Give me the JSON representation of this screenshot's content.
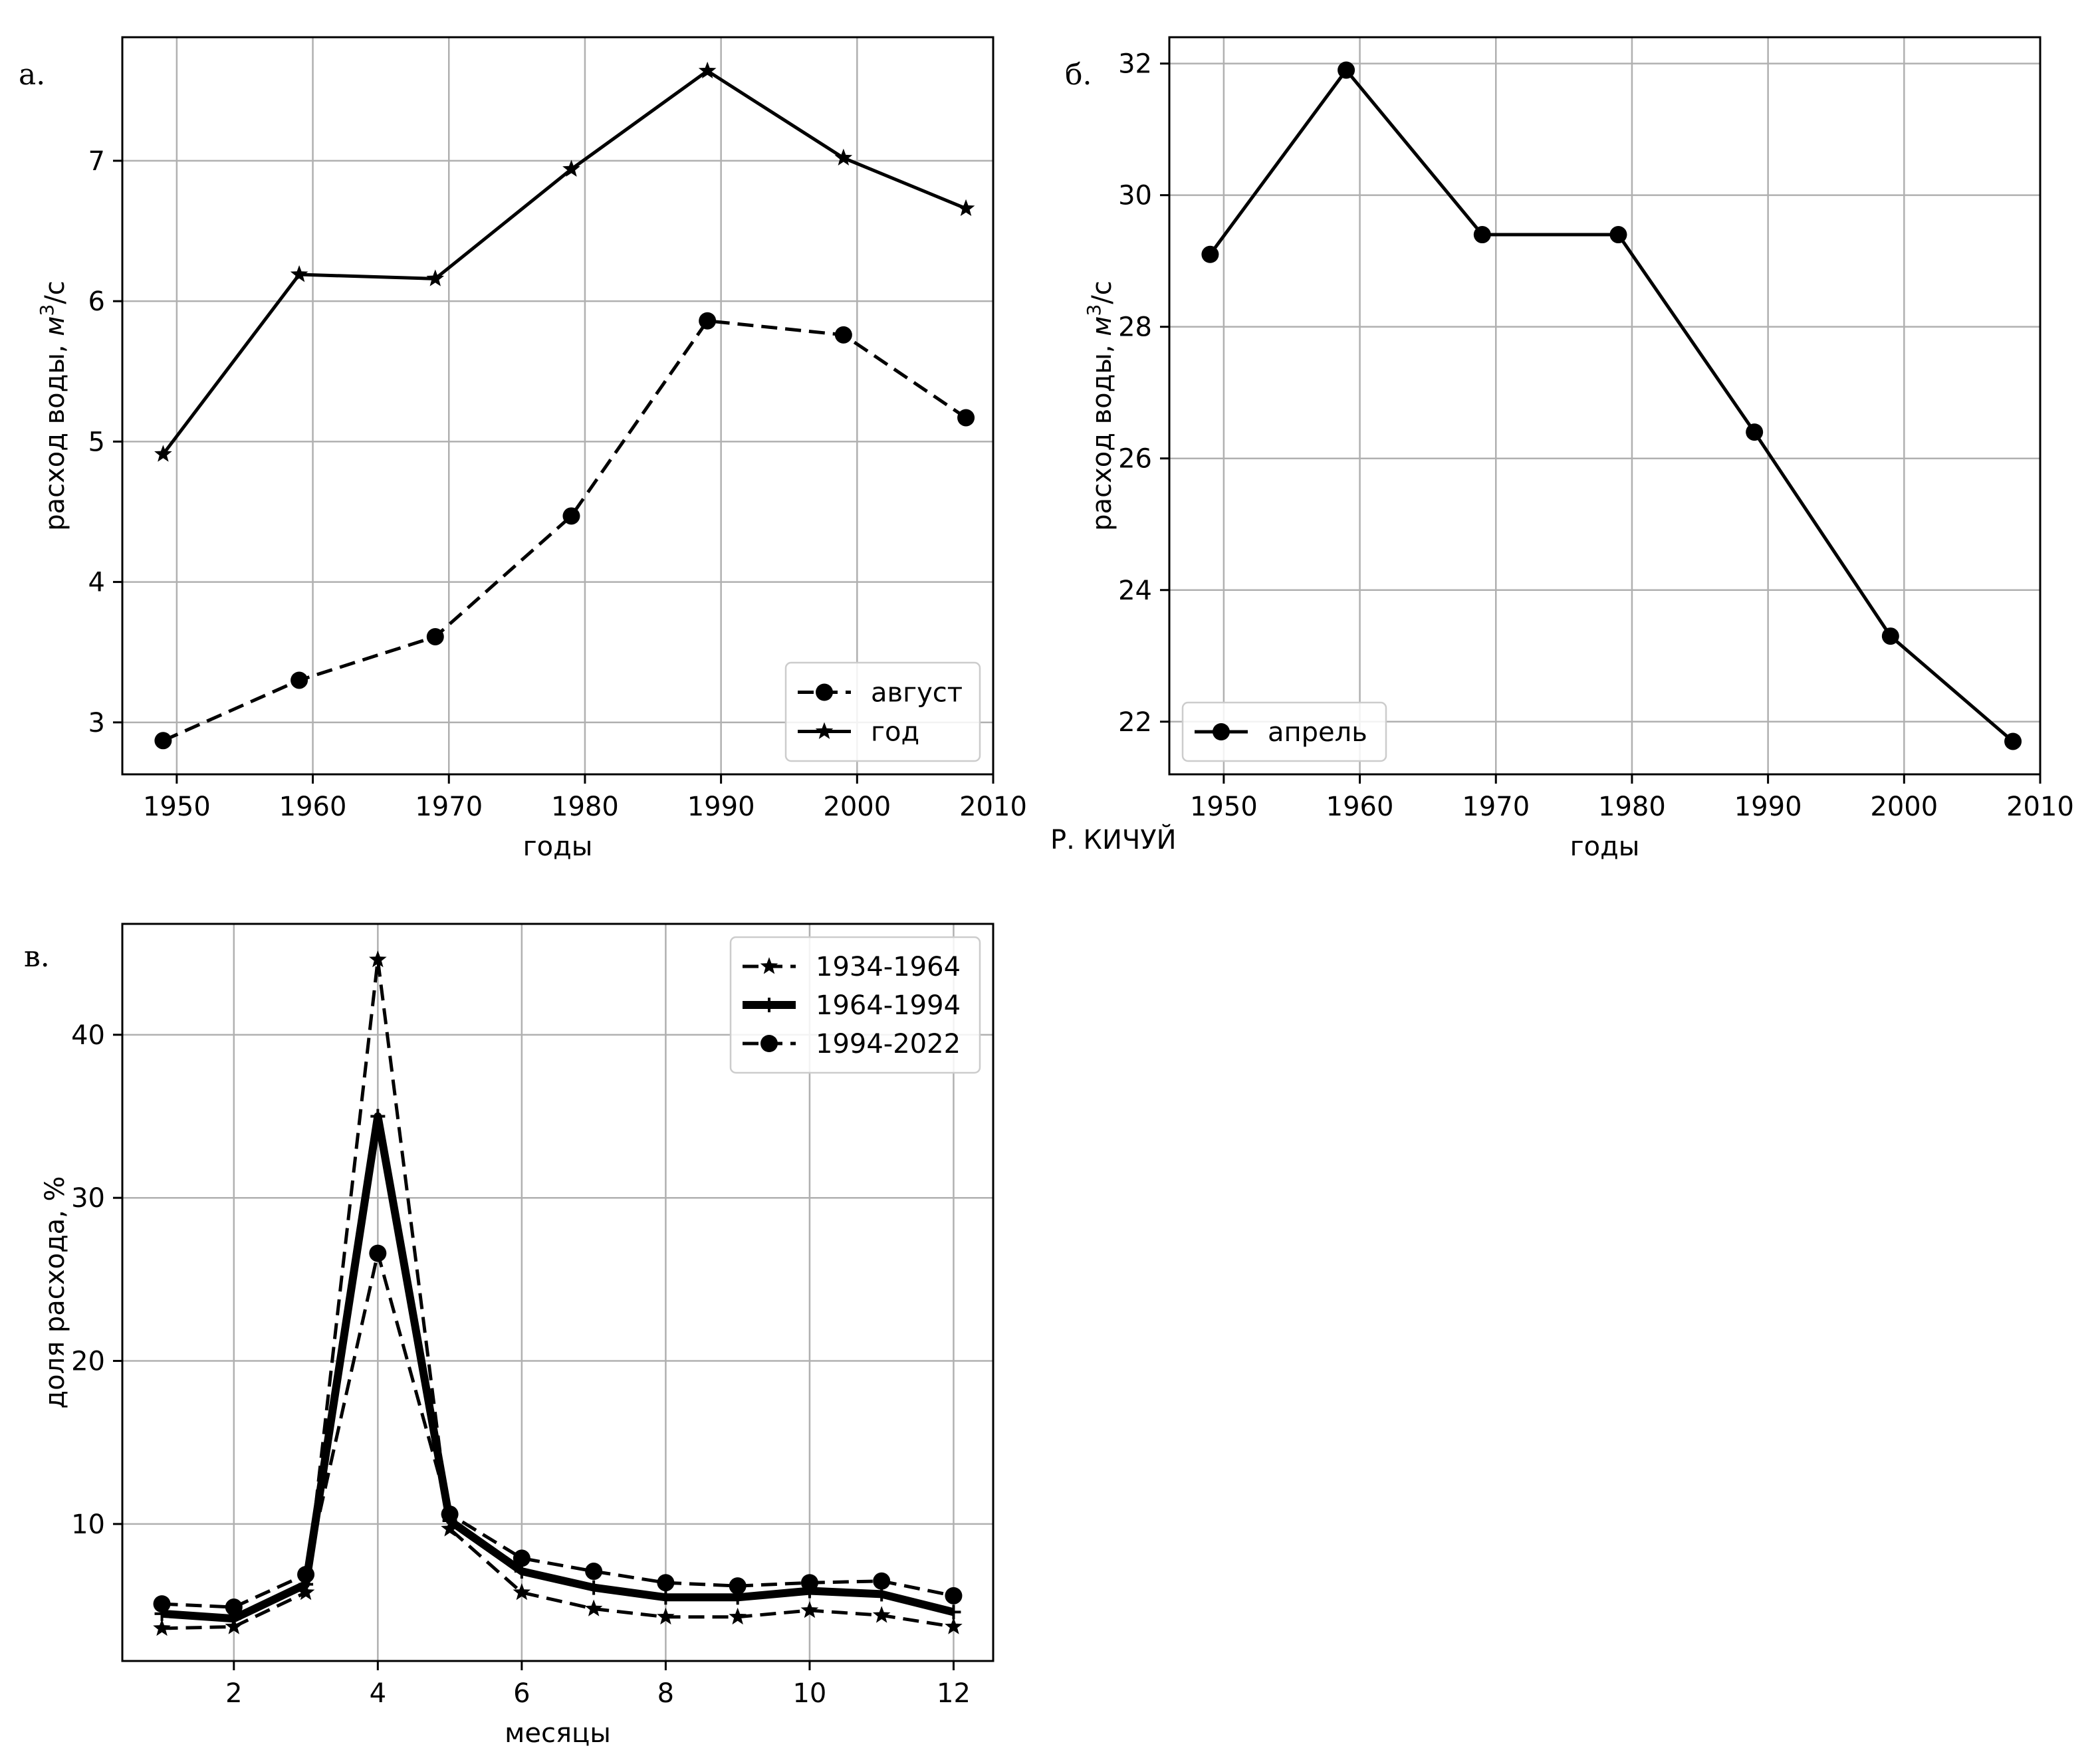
{
  "figure_caption": "Р. КИЧУЙ",
  "chart_data": [
    {
      "type": "line",
      "panel_letter": "а.",
      "xlabel": "годы",
      "ylabel_prefix": "расход воды, ",
      "ylabel_unit": "м",
      "ylabel_exp": "3",
      "ylabel_suffix": "/с",
      "xlim": [
        1946,
        2010
      ],
      "ylim": [
        2.63,
        7.88
      ],
      "xticks": [
        1950,
        1960,
        1970,
        1980,
        1990,
        2000,
        2010
      ],
      "yticks": [
        3,
        4,
        5,
        6,
        7
      ],
      "grid": true,
      "legend_position": "lower-right",
      "series": [
        {
          "name": "август",
          "marker": "circle",
          "dash": true,
          "width": "normal",
          "x": [
            1949,
            1959,
            1969,
            1979,
            1989,
            1999,
            2008
          ],
          "values": [
            2.87,
            3.3,
            3.61,
            4.47,
            5.86,
            5.76,
            5.17
          ]
        },
        {
          "name": "год",
          "marker": "star",
          "dash": false,
          "width": "normal",
          "x": [
            1949,
            1959,
            1969,
            1979,
            1989,
            1999,
            2008
          ],
          "values": [
            4.91,
            6.19,
            6.16,
            6.94,
            7.64,
            7.02,
            6.66
          ]
        }
      ]
    },
    {
      "type": "line",
      "panel_letter": "б.",
      "xlabel": "годы",
      "ylabel_prefix": "расход воды, ",
      "ylabel_unit": "м",
      "ylabel_exp": "3",
      "ylabel_suffix": "/с",
      "xlim": [
        1946,
        2010
      ],
      "ylim": [
        21.2,
        32.4
      ],
      "xticks": [
        1950,
        1960,
        1970,
        1980,
        1990,
        2000,
        2010
      ],
      "yticks": [
        22,
        24,
        26,
        28,
        30,
        32
      ],
      "grid": true,
      "legend_position": "lower-left",
      "series": [
        {
          "name": "апрель",
          "marker": "circle",
          "dash": false,
          "width": "normal",
          "x": [
            1949,
            1959,
            1969,
            1979,
            1989,
            1999,
            2008
          ],
          "values": [
            29.1,
            31.9,
            29.4,
            29.4,
            26.4,
            23.3,
            21.7
          ]
        }
      ]
    },
    {
      "type": "line",
      "panel_letter": "в.",
      "xlabel": "месяцы",
      "ylabel_prefix": "доля расхода, %",
      "ylabel_unit": "",
      "ylabel_exp": "",
      "ylabel_suffix": "",
      "xlim": [
        0.45,
        12.55
      ],
      "ylim": [
        1.6,
        46.8
      ],
      "xticks": [
        2,
        4,
        6,
        8,
        10,
        12
      ],
      "yticks": [
        10,
        20,
        30,
        40
      ],
      "grid": true,
      "legend_position": "upper-right",
      "series": [
        {
          "name": "1934-1964",
          "marker": "star",
          "dash": true,
          "width": "normal",
          "x": [
            1,
            2,
            3,
            4,
            5,
            6,
            7,
            8,
            9,
            10,
            11,
            12
          ],
          "values": [
            3.6,
            3.7,
            5.8,
            44.6,
            9.7,
            5.8,
            4.8,
            4.3,
            4.3,
            4.7,
            4.4,
            3.7
          ]
        },
        {
          "name": "1964-1994",
          "marker": "plus",
          "dash": false,
          "width": "thick",
          "x": [
            1,
            2,
            3,
            4,
            5,
            6,
            7,
            8,
            9,
            10,
            11,
            12
          ],
          "values": [
            4.5,
            4.2,
            6.3,
            35.0,
            10.2,
            7.1,
            6.1,
            5.5,
            5.5,
            5.9,
            5.7,
            4.6
          ]
        },
        {
          "name": "1994-2022",
          "marker": "circle",
          "dash": true,
          "width": "normal",
          "x": [
            1,
            2,
            3,
            4,
            5,
            6,
            7,
            8,
            9,
            10,
            11,
            12
          ],
          "values": [
            5.1,
            4.9,
            6.9,
            26.6,
            10.6,
            7.9,
            7.1,
            6.4,
            6.2,
            6.4,
            6.5,
            5.6
          ]
        }
      ]
    }
  ]
}
